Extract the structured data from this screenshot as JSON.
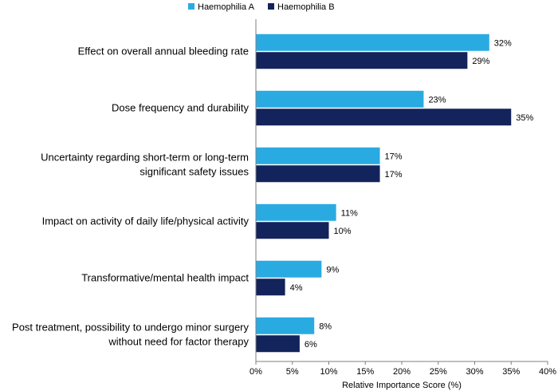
{
  "chart_data": {
    "type": "bar",
    "orientation": "horizontal",
    "categories": [
      [
        "Effect on overall annual bleeding rate"
      ],
      [
        "Dose frequency and durability"
      ],
      [
        "Uncertainty regarding short-term or long-term",
        "significant safety issues"
      ],
      [
        "Impact on activity of daily life/physical activity"
      ],
      [
        "Transformative/mental health impact"
      ],
      [
        "Post treatment, possibility to undergo minor surgery",
        "without need for factor therapy"
      ]
    ],
    "series": [
      {
        "name": "Haemophilia A",
        "color": "#29abe2",
        "values": [
          32,
          23,
          17,
          11,
          9,
          8
        ]
      },
      {
        "name": "Haemophilia B",
        "color": "#13235b",
        "values": [
          29,
          35,
          17,
          10,
          4,
          6
        ]
      }
    ],
    "value_suffix": "%",
    "xlim": [
      0,
      40
    ],
    "xticks": [
      0,
      5,
      10,
      15,
      20,
      25,
      30,
      35,
      40
    ],
    "xtick_labels": [
      "0%",
      "5%",
      "10%",
      "15%",
      "20%",
      "25%",
      "30%",
      "35%",
      "40%"
    ],
    "xlabel": "Relative Importance Score (%)",
    "legend_position": "top-center",
    "grid": false
  }
}
